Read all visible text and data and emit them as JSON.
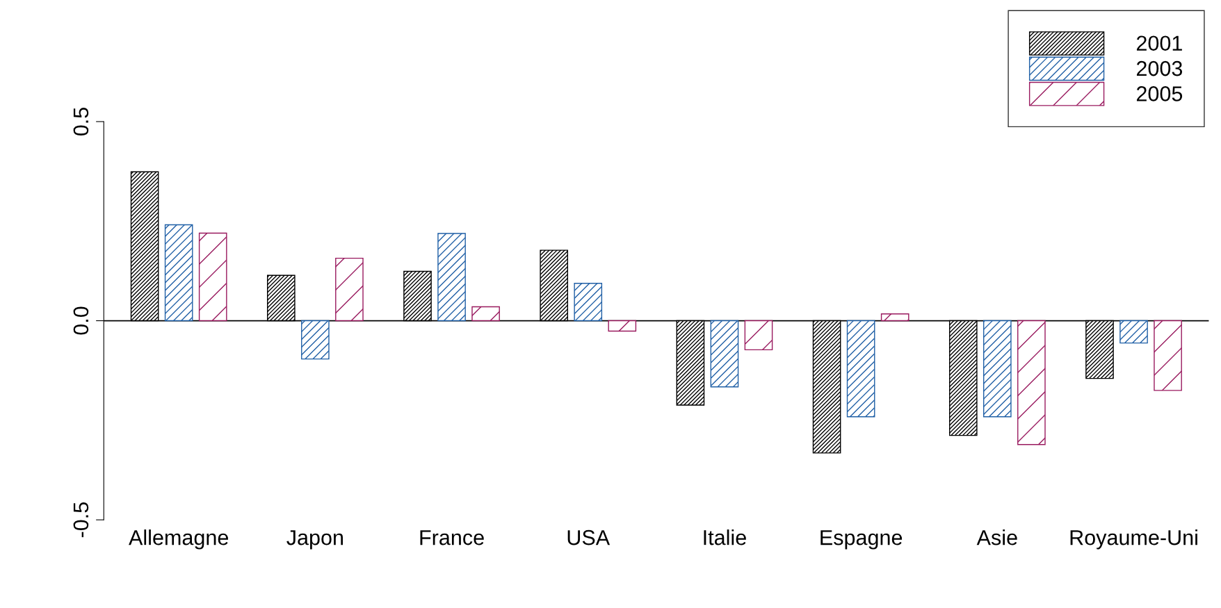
{
  "chart_data": {
    "type": "bar",
    "categories": [
      "Allemagne",
      "Japon",
      "France",
      "USA",
      "Italie",
      "Espagne",
      "Asie",
      "Royaume-Uni"
    ],
    "series": [
      {
        "name": "2001",
        "color": "#000000",
        "values": [
          0.374,
          0.114,
          0.124,
          0.177,
          -0.212,
          -0.332,
          -0.288,
          -0.145
        ]
      },
      {
        "name": "2003",
        "color": "#1f5fa6",
        "values": [
          0.241,
          -0.096,
          0.219,
          0.094,
          -0.166,
          -0.241,
          -0.241,
          -0.056
        ]
      },
      {
        "name": "2005",
        "color": "#99195e",
        "values": [
          0.22,
          0.157,
          0.035,
          -0.026,
          -0.073,
          0.017,
          -0.311,
          -0.175
        ]
      }
    ],
    "ylim": [
      -0.5,
      0.5
    ],
    "yticks": [
      {
        "value": -0.5,
        "label": "-0.5"
      },
      {
        "value": 0,
        "label": "0.0"
      },
      {
        "value": 0.5,
        "label": "0.5"
      }
    ],
    "ref_lines": [
      {
        "axis": "y",
        "value": 0,
        "color": "#000000"
      }
    ],
    "grid": false,
    "legend": "top right"
  }
}
